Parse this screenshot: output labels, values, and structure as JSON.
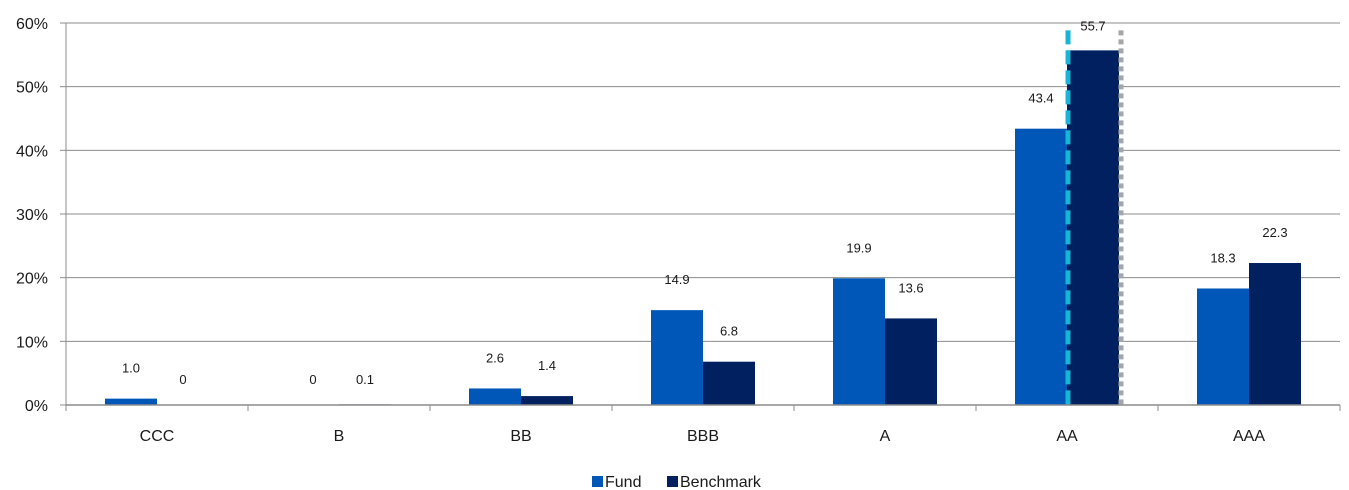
{
  "chart_data": {
    "type": "bar",
    "categories": [
      "CCC",
      "B",
      "BB",
      "BBB",
      "A",
      "AA",
      "AAA"
    ],
    "series": [
      {
        "name": "Fund",
        "values": [
          1.0,
          0,
          2.6,
          14.9,
          19.9,
          43.4,
          18.3
        ],
        "labels": [
          "1.0",
          "0",
          "2.6",
          "14.9",
          "19.9",
          "43.4",
          "18.3"
        ],
        "color": "#0057b8"
      },
      {
        "name": "Benchmark",
        "values": [
          0,
          0.1,
          1.4,
          6.8,
          13.6,
          55.7,
          22.3
        ],
        "labels": [
          "0",
          "0.1",
          "1.4",
          "6.8",
          "13.6",
          "55.7",
          "22.3"
        ],
        "color": "#002060"
      }
    ],
    "y_ticks": [
      "0%",
      "10%",
      "20%",
      "30%",
      "40%",
      "50%",
      "60%"
    ],
    "ylim": [
      0,
      60
    ],
    "grid": true,
    "legend_position": "bottom",
    "title": "",
    "xlabel": "",
    "ylabel": "",
    "highlight": {
      "category": "AA",
      "colors": [
        "#19b5d6",
        "#a6a6a6"
      ]
    }
  }
}
